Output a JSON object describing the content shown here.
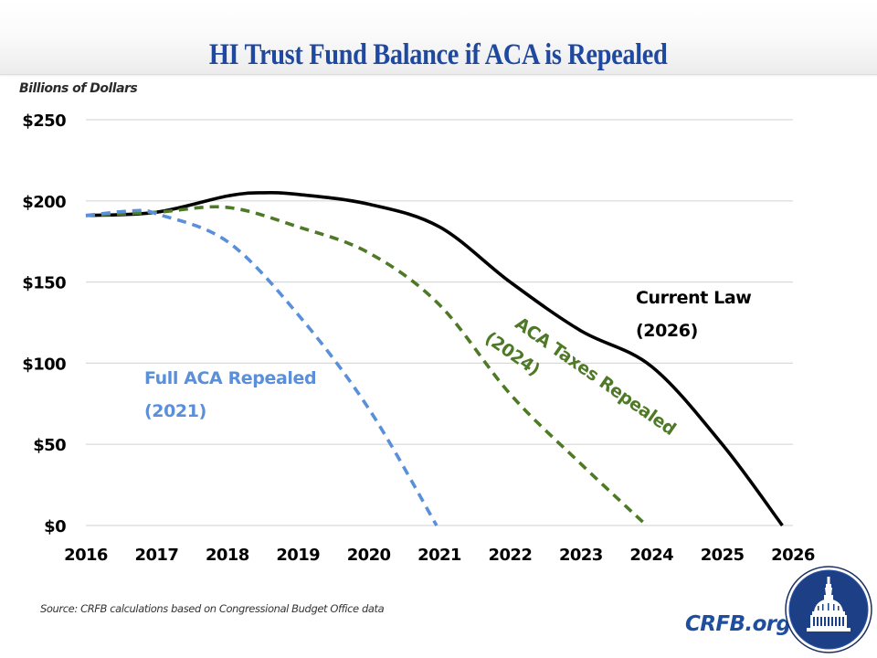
{
  "header": {
    "title": "HI Trust Fund Balance if ACA is Repealed"
  },
  "footer": {
    "source": "Source: CRFB calculations based on Congressional Budget Office data",
    "brand": "CRFB.org",
    "logo_icon": "capitol-dome-seal-icon"
  },
  "colors": {
    "title": "#1f48a0",
    "current_law": "#000000",
    "aca_taxes_repealed": "#4e7a27",
    "full_aca_repealed": "#5a8fda",
    "gridline": "#d9d9d9",
    "brand": "#1f4e9e"
  },
  "chart_data": {
    "type": "line",
    "title": "HI Trust Fund Balance if ACA is Repealed",
    "xlabel": "",
    "ylabel": "Billions of Dollars",
    "x": [
      2016,
      2017,
      2018,
      2019,
      2020,
      2021,
      2022,
      2023,
      2024,
      2025,
      2026
    ],
    "xticks": [
      "2016",
      "2017",
      "2018",
      "2019",
      "2020",
      "2021",
      "2022",
      "2023",
      "2024",
      "2025",
      "2026"
    ],
    "yticks": [
      "$0",
      "$50",
      "$100",
      "$150",
      "$200",
      "$250"
    ],
    "ytick_values": [
      0,
      50,
      100,
      150,
      200,
      250
    ],
    "xlim": [
      2016,
      2026
    ],
    "ylim": [
      0,
      250
    ],
    "grid": true,
    "series": [
      {
        "name": "Current Law",
        "label_lines": [
          "Current Law",
          "(2026)"
        ],
        "style": "solid",
        "color": "#000000",
        "x": [
          2016,
          2017,
          2018,
          2018.5,
          2019,
          2020,
          2021,
          2022,
          2023,
          2024,
          2025,
          2025.85
        ],
        "values": [
          191,
          193,
          203,
          205,
          204,
          198,
          184,
          150,
          120,
          98,
          50,
          0
        ]
      },
      {
        "name": "ACA Taxes Repealed",
        "label_lines": [
          "ACA Taxes Repealed",
          "(2024)"
        ],
        "style": "dashed",
        "color": "#4e7a27",
        "x": [
          2016,
          2017,
          2018,
          2019,
          2020,
          2021,
          2022,
          2023,
          2023.93
        ],
        "values": [
          191,
          193,
          196,
          184,
          168,
          136,
          81,
          38,
          0
        ]
      },
      {
        "name": "Full ACA Repealed",
        "label_lines": [
          "Full ACA Repealed",
          "(2021)"
        ],
        "style": "dashed",
        "color": "#5a8fda",
        "x": [
          2016,
          2016.7,
          2017,
          2018,
          2019,
          2020,
          2020.96
        ],
        "values": [
          191,
          194,
          192,
          175,
          130,
          72,
          0
        ]
      }
    ]
  }
}
